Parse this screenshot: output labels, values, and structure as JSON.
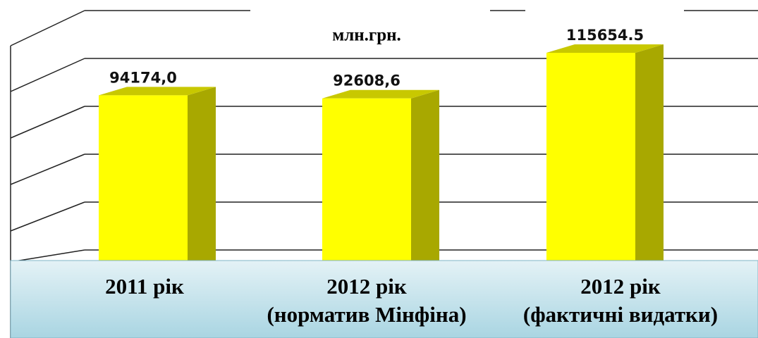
{
  "chart_data": {
    "type": "bar3d",
    "subtitle": "млн.грн.",
    "categories": [
      [
        "2011 рік"
      ],
      [
        "2012 рік",
        "(норматив Мінфіна)"
      ],
      [
        "2012 рік",
        "(фактичні видатки)"
      ]
    ],
    "values": [
      94174.0,
      92608.6,
      115654.5
    ],
    "value_labels": [
      "94174,0",
      "92608,6",
      "115654.5"
    ],
    "color": "#ffff00",
    "side_color": "#a8a800",
    "top_color": "#c8c800",
    "ylim": [
      0,
      137000
    ],
    "grid": true
  }
}
